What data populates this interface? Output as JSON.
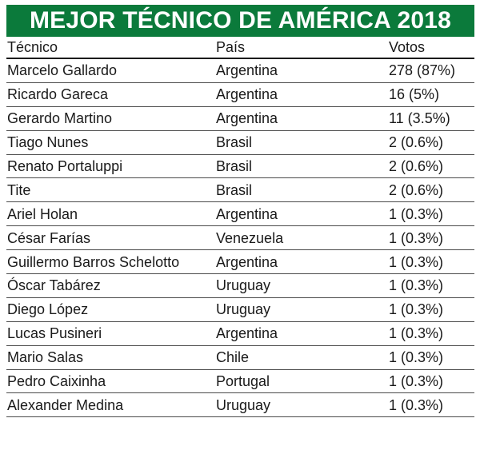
{
  "title": "MEJOR TÉCNICO DE AMÉRICA 2018",
  "columns": {
    "coach": "Técnico",
    "country": "País",
    "votes": "Votos"
  },
  "rows": [
    {
      "coach": "Marcelo Gallardo",
      "country": "Argentina",
      "votes": "278 (87%)"
    },
    {
      "coach": "Ricardo Gareca",
      "country": "Argentina",
      "votes": "16 (5%)"
    },
    {
      "coach": "Gerardo Martino",
      "country": "Argentina",
      "votes": "11 (3.5%)"
    },
    {
      "coach": "Tiago Nunes",
      "country": "Brasil",
      "votes": "2 (0.6%)"
    },
    {
      "coach": "Renato Portaluppi",
      "country": "Brasil",
      "votes": "2 (0.6%)"
    },
    {
      "coach": "Tite",
      "country": "Brasil",
      "votes": "2 (0.6%)"
    },
    {
      "coach": "Ariel Holan",
      "country": "Argentina",
      "votes": "1 (0.3%)"
    },
    {
      "coach": "César Farías",
      "country": "Venezuela",
      "votes": "1 (0.3%)"
    },
    {
      "coach": "Guillermo Barros Schelotto",
      "country": "Argentina",
      "votes": "1 (0.3%)"
    },
    {
      "coach": "Óscar Tabárez",
      "country": "Uruguay",
      "votes": "1 (0.3%)"
    },
    {
      "coach": "Diego López",
      "country": "Uruguay",
      "votes": "1 (0.3%)"
    },
    {
      "coach": "Lucas Pusineri",
      "country": "Argentina",
      "votes": "1 (0.3%)"
    },
    {
      "coach": "Mario Salas",
      "country": "Chile",
      "votes": "1 (0.3%)"
    },
    {
      "coach": "Pedro Caixinha",
      "country": "Portugal",
      "votes": "1 (0.3%)"
    },
    {
      "coach": "Alexander Medina",
      "country": "Uruguay",
      "votes": "1 (0.3%)"
    }
  ],
  "colors": {
    "title_bg": "#0b7a3b",
    "title_text": "#ffffff",
    "text": "#1a1a1a"
  }
}
